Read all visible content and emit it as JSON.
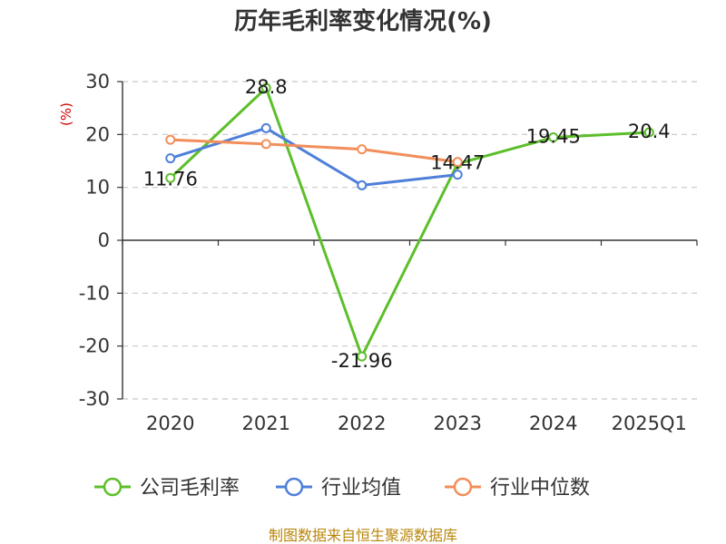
{
  "chart_data": {
    "type": "line",
    "title": "历年毛利率变化情况(%)",
    "unit_label": "(%)",
    "categories": [
      "2020",
      "2021",
      "2022",
      "2023",
      "2024",
      "2025Q1"
    ],
    "ylim": [
      -30,
      30
    ],
    "yticks": [
      30,
      20,
      10,
      0,
      -10,
      -20,
      -30
    ],
    "grid": true,
    "legend_position": "bottom",
    "series": [
      {
        "name": "公司毛利率",
        "color": "#5cbf2a",
        "values": [
          11.76,
          28.8,
          -21.96,
          14.47,
          19.45,
          20.4
        ],
        "labels": [
          "11.76",
          "28.8",
          "-21.96",
          "14.47",
          "19.45",
          "20.4"
        ]
      },
      {
        "name": "行业均值",
        "color": "#4f7fd9",
        "values": [
          15.5,
          21.2,
          10.4,
          12.4,
          null,
          null
        ]
      },
      {
        "name": "行业中位数",
        "color": "#f28e5a",
        "values": [
          19.0,
          18.2,
          17.2,
          14.8,
          null,
          null
        ]
      }
    ]
  },
  "footer": "制图数据来自恒生聚源数据库"
}
